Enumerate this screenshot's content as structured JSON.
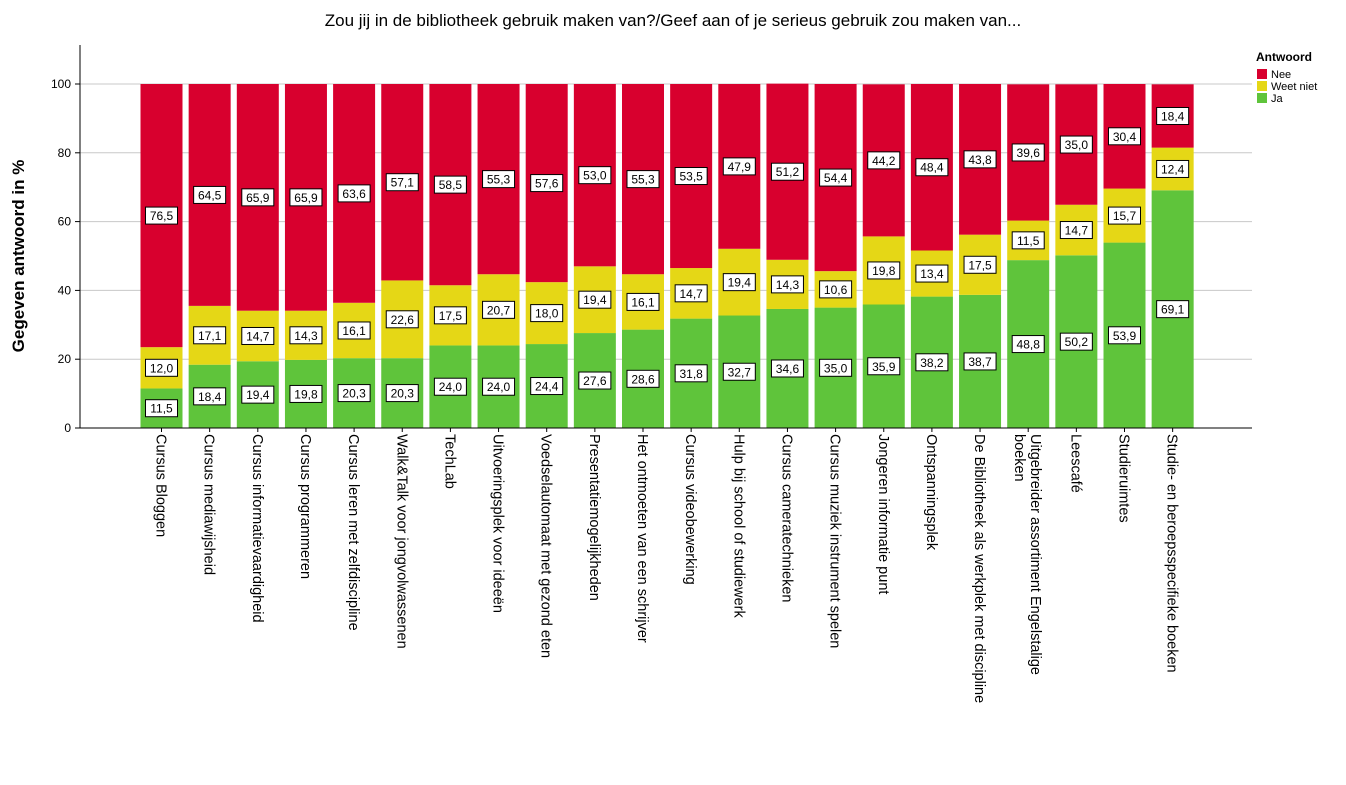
{
  "chart_data": {
    "type": "bar",
    "stacked": true,
    "title": "Zou jij in de bibliotheek gebruik maken van?/Geef aan of je serieus gebruik zou maken van...",
    "xlabel": "",
    "ylabel": "Gegeven antwoord in %",
    "ylim": [
      0,
      100
    ],
    "yticks": [
      "0",
      "20",
      "40",
      "60",
      "80",
      "100"
    ],
    "grid": true,
    "legend": {
      "title": "Antwoord",
      "position": "top-right"
    },
    "categories": [
      [
        "Cursus Bloggen"
      ],
      [
        "Cursus mediawijsheid"
      ],
      [
        "Cursus informatievaardigheid"
      ],
      [
        "Cursus programmeren"
      ],
      [
        "Cursus leren met zelfdiscipline"
      ],
      [
        "Walk&Talk voor jongvolwassenen"
      ],
      [
        "TechLab"
      ],
      [
        "Uitvoeringsplek voor ideeën"
      ],
      [
        "Voedselautomaat met gezond eten"
      ],
      [
        "Presentatiemogelijkheden"
      ],
      [
        "Het ontmoeten van een schrijver"
      ],
      [
        "Cursus videobewerking"
      ],
      [
        "Hulp bij school of studiewerk"
      ],
      [
        "Cursus cameratechnieken"
      ],
      [
        "Cursus muziek instrument spelen"
      ],
      [
        "Jongeren informatie punt"
      ],
      [
        "Ontspanningsplek"
      ],
      [
        "De Bibliotheek als werkplek met discipline"
      ],
      [
        "Uitgebreider assortiment Engelstalige",
        "boeken"
      ],
      [
        "Leescafé"
      ],
      [
        "Studieruimtes"
      ],
      [
        "Studie- en beroepsspecifieke boeken"
      ]
    ],
    "series": [
      {
        "name": "Ja",
        "color": "#5fc43b",
        "values": [
          11.5,
          18.4,
          19.4,
          19.8,
          20.3,
          20.3,
          24.0,
          24.0,
          24.4,
          27.6,
          28.6,
          31.8,
          32.7,
          34.6,
          35.0,
          35.9,
          38.2,
          38.7,
          48.8,
          50.2,
          53.9,
          69.1
        ],
        "labels": [
          "11,5",
          "18,4",
          "19,4",
          "19,8",
          "20,3",
          "20,3",
          "24,0",
          "24,0",
          "24,4",
          "27,6",
          "28,6",
          "31,8",
          "32,7",
          "34,6",
          "35,0",
          "35,9",
          "38,2",
          "38,7",
          "48,8",
          "50,2",
          "53,9",
          "69,1"
        ]
      },
      {
        "name": "Weet niet",
        "color": "#e5d716",
        "values": [
          12.0,
          17.1,
          14.7,
          14.3,
          16.1,
          22.6,
          17.5,
          20.7,
          18.0,
          19.4,
          16.1,
          14.7,
          19.4,
          14.3,
          10.6,
          19.8,
          13.4,
          17.5,
          11.5,
          14.7,
          15.7,
          12.4
        ],
        "labels": [
          "12,0",
          "17,1",
          "14,7",
          "14,3",
          "16,1",
          "22,6",
          "17,5",
          "20,7",
          "18,0",
          "19,4",
          "16,1",
          "14,7",
          "19,4",
          "14,3",
          "10,6",
          "19,8",
          "13,4",
          "17,5",
          "11,5",
          "14,7",
          "15,7",
          "12,4"
        ]
      },
      {
        "name": "Nee",
        "color": "#d8002e",
        "values": [
          76.5,
          64.5,
          65.9,
          65.9,
          63.6,
          57.1,
          58.5,
          55.3,
          57.6,
          53.0,
          55.3,
          53.5,
          47.9,
          51.2,
          54.4,
          44.2,
          48.4,
          43.8,
          39.6,
          35.0,
          30.4,
          18.4
        ],
        "labels": [
          "76,5",
          "64,5",
          "65,9",
          "65,9",
          "63,6",
          "57,1",
          "58,5",
          "55,3",
          "57,6",
          "53,0",
          "55,3",
          "53,5",
          "47,9",
          "51,2",
          "54,4",
          "44,2",
          "48,4",
          "43,8",
          "39,6",
          "35,0",
          "30,4",
          "18,4"
        ]
      }
    ]
  }
}
